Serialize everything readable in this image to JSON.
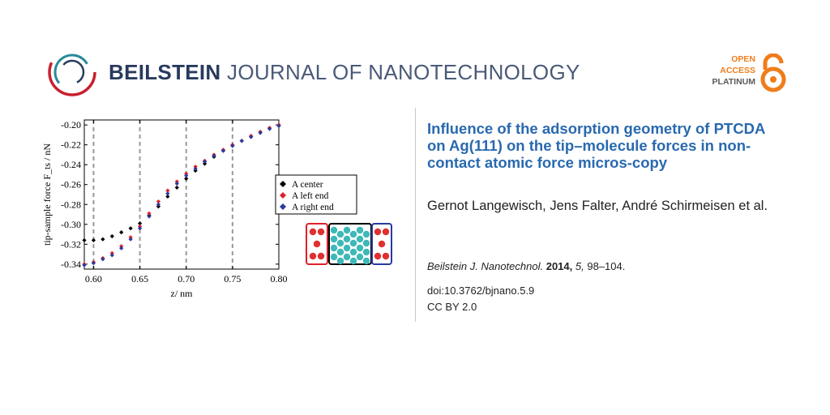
{
  "header": {
    "journal_bold": "BEILSTEIN",
    "journal_rest": "JOURNAL OF NANOTECHNOLOGY",
    "open_access": [
      "OPEN",
      "ACCESS",
      "PLATINUM"
    ],
    "colors": {
      "brand_navy": "#283a5e",
      "oa_orange": "#f07d1a",
      "logo_red": "#c8202f",
      "logo_teal": "#2a8a9a"
    }
  },
  "article": {
    "title": "Influence of the adsorption geometry of PTCDA on Ag(111) on the tip–molecule forces in non-contact atomic force micros-copy",
    "authors": "Gernot Langewisch, Jens Falter, André Schirmeisen et al.",
    "journal_abbrev": "Beilstein J. Nanotechnol.",
    "year": "2014,",
    "volume": "5,",
    "pages": "98–104.",
    "doi": "doi:10.3762/bjnano.5.9",
    "license": "CC BY 2.0",
    "title_color": "#2969b0"
  },
  "chart_data": {
    "type": "scatter",
    "xlabel": "z/ nm",
    "ylabel": "tip-sample force F_ts / nN",
    "xlim": [
      0.59,
      0.8
    ],
    "ylim": [
      -0.345,
      -0.195
    ],
    "x_ticks": [
      "0.60",
      "0.65",
      "0.70",
      "0.75",
      "0.80"
    ],
    "y_ticks": [
      "-0.20",
      "-0.22",
      "-0.24",
      "-0.26",
      "-0.28",
      "-0.30",
      "-0.32",
      "-0.34"
    ],
    "vlines": [
      0.6,
      0.65,
      0.7,
      0.75
    ],
    "legend_placement": "right",
    "series": [
      {
        "name": "A center",
        "color": "#000000",
        "marker": "diamond",
        "x": [
          0.59,
          0.6,
          0.61,
          0.62,
          0.63,
          0.64,
          0.65,
          0.66,
          0.67,
          0.68,
          0.69,
          0.7,
          0.71,
          0.72,
          0.73,
          0.74,
          0.75,
          0.76,
          0.77,
          0.78,
          0.79,
          0.8
        ],
        "y": [
          -0.316,
          -0.316,
          -0.315,
          -0.312,
          -0.308,
          -0.304,
          -0.299,
          -0.291,
          -0.282,
          -0.272,
          -0.263,
          -0.254,
          -0.246,
          -0.239,
          -0.232,
          -0.226,
          -0.221,
          -0.216,
          -0.212,
          -0.207,
          -0.203,
          -0.2
        ]
      },
      {
        "name": "A left end",
        "color": "#e0202a",
        "marker": "diamond",
        "x": [
          0.59,
          0.6,
          0.61,
          0.62,
          0.63,
          0.64,
          0.65,
          0.66,
          0.67,
          0.68,
          0.69,
          0.7,
          0.71,
          0.72,
          0.73,
          0.74,
          0.75,
          0.76,
          0.77,
          0.78,
          0.79,
          0.8
        ],
        "y": [
          -0.34,
          -0.338,
          -0.334,
          -0.329,
          -0.322,
          -0.313,
          -0.302,
          -0.289,
          -0.277,
          -0.266,
          -0.257,
          -0.249,
          -0.242,
          -0.236,
          -0.23,
          -0.225,
          -0.22,
          -0.216,
          -0.211,
          -0.207,
          -0.203,
          -0.2
        ]
      },
      {
        "name": "A right end",
        "color": "#2a3aa0",
        "marker": "diamond",
        "x": [
          0.59,
          0.6,
          0.61,
          0.62,
          0.63,
          0.64,
          0.65,
          0.66,
          0.67,
          0.68,
          0.69,
          0.7,
          0.71,
          0.72,
          0.73,
          0.74,
          0.75,
          0.76,
          0.77,
          0.78,
          0.79,
          0.8
        ],
        "y": [
          -0.341,
          -0.339,
          -0.335,
          -0.331,
          -0.324,
          -0.315,
          -0.304,
          -0.292,
          -0.28,
          -0.269,
          -0.259,
          -0.251,
          -0.244,
          -0.237,
          -0.231,
          -0.226,
          -0.221,
          -0.216,
          -0.212,
          -0.208,
          -0.204,
          -0.201
        ]
      }
    ]
  }
}
